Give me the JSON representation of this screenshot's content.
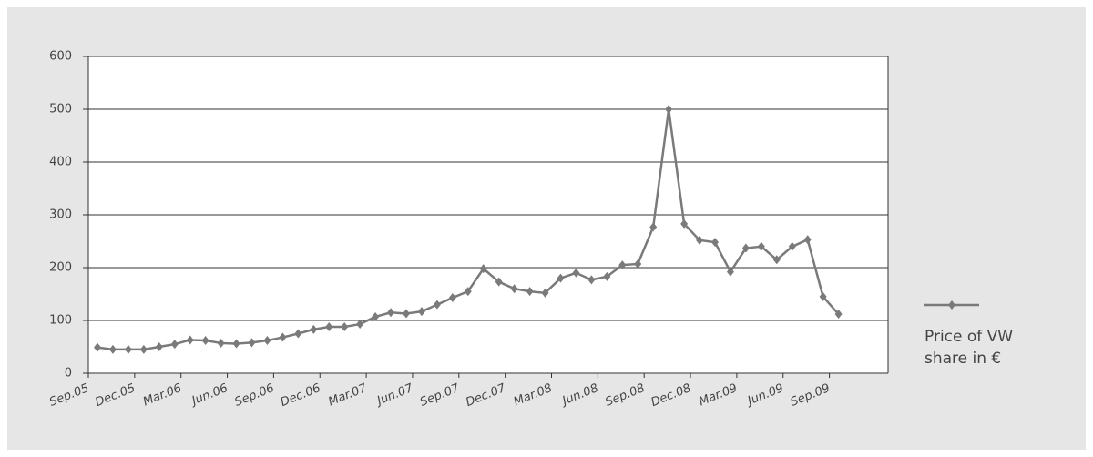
{
  "chart_data": {
    "type": "line",
    "categories": [
      "Sep.05",
      null,
      null,
      "Dec.05",
      null,
      null,
      "Mar.06",
      null,
      null,
      "Jun.06",
      null,
      null,
      "Sep.06",
      null,
      null,
      "Dec.06",
      null,
      null,
      "Mar.07",
      null,
      null,
      "Jun.07",
      null,
      null,
      "Sep.07",
      null,
      null,
      "Dec.07",
      null,
      null,
      "Mar.08",
      null,
      null,
      "Jun.08",
      null,
      null,
      "Sep.08",
      null,
      null,
      "Dec.08",
      null,
      null,
      "Mar.09",
      null,
      null,
      "Jun.09",
      null,
      null,
      "Sep.09"
    ],
    "series": [
      {
        "name": "Price of VW share in €",
        "color": "#7a7a7a",
        "values": [
          49,
          45,
          45,
          45,
          50,
          55,
          63,
          62,
          57,
          56,
          58,
          62,
          68,
          75,
          83,
          88,
          88,
          93,
          107,
          115,
          113,
          117,
          130,
          143,
          155,
          198,
          173,
          160,
          155,
          152,
          180,
          190,
          177,
          183,
          205,
          207,
          277,
          500,
          283,
          252,
          248,
          192,
          237,
          240,
          215,
          240,
          253,
          145,
          112
        ]
      }
    ],
    "ylim": [
      0,
      600
    ],
    "yticks": [
      0,
      100,
      200,
      300,
      400,
      500,
      600
    ],
    "grid": true,
    "legend": "right"
  }
}
